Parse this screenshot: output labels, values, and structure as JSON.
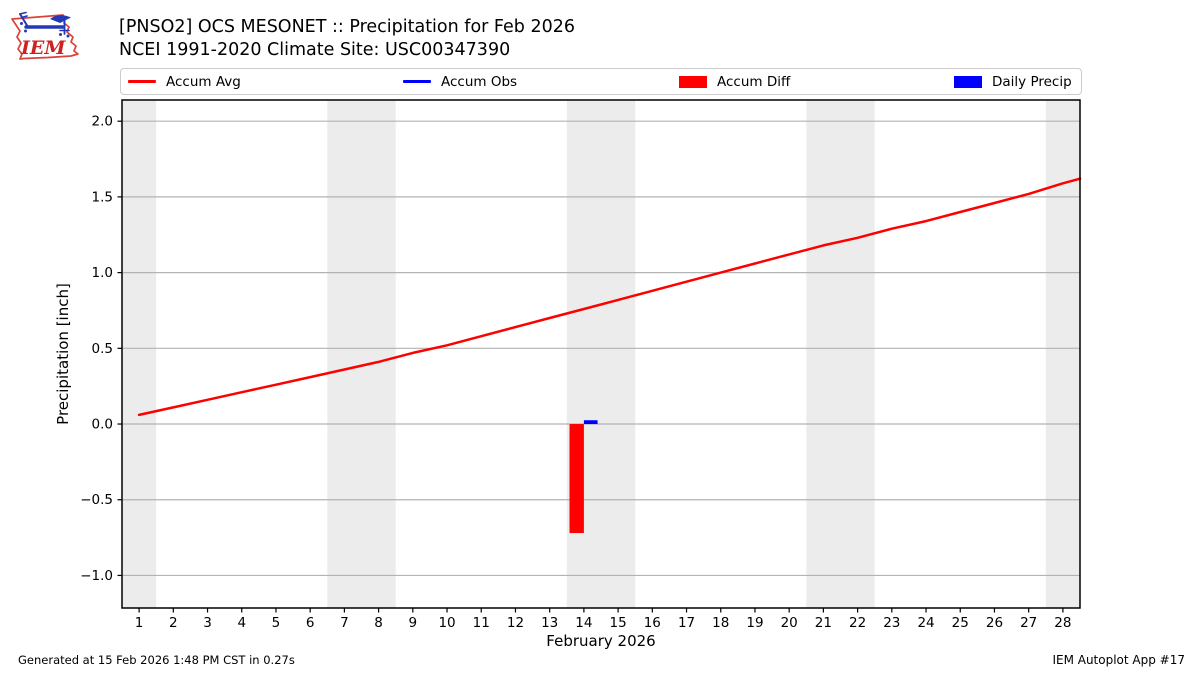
{
  "logo": {
    "text": "IEM"
  },
  "header": {
    "title": "[PNSO2] OCS MESONET :: Precipitation for Feb 2026",
    "subtitle": "NCEI 1991-2020 Climate Site: USC00347390"
  },
  "legend": {
    "items": [
      {
        "label": "Accum Avg",
        "swatch": "line",
        "color": "#ff0000"
      },
      {
        "label": "Accum Obs",
        "swatch": "line",
        "color": "#0000ff"
      },
      {
        "label": "Accum Diff",
        "swatch": "rect",
        "color": "#ff0000"
      },
      {
        "label": "Daily Precip",
        "swatch": "rect",
        "color": "#0000ff"
      }
    ]
  },
  "footer": {
    "left": "Generated at 15 Feb 2026 1:48 PM CST in 0.27s",
    "right": "IEM Autoplot App #17"
  },
  "chart_data": {
    "type": "line",
    "title": "[PNSO2] OCS MESONET :: Precipitation for Feb 2026",
    "subtitle": "NCEI 1991-2020 Climate Site: USC00347390",
    "xlabel": "February 2026",
    "ylabel": "Precipitation [inch]",
    "xlim": [
      0.5,
      28.5
    ],
    "ylim": [
      -1.215,
      2.14
    ],
    "x_ticks": [
      1,
      2,
      3,
      4,
      5,
      6,
      7,
      8,
      9,
      10,
      11,
      12,
      13,
      14,
      15,
      16,
      17,
      18,
      19,
      20,
      21,
      22,
      23,
      24,
      25,
      26,
      27,
      28
    ],
    "y_ticks": [
      -1.0,
      -0.5,
      0.0,
      0.5,
      1.0,
      1.5,
      2.0
    ],
    "y_tick_labels": [
      "−1.0",
      "−0.5",
      "0.0",
      "0.5",
      "1.0",
      "1.5",
      "2.0"
    ],
    "grid": "horizontal-only",
    "legend_position": "top",
    "band_color": "#ececec",
    "grid_color": "#b3b3b3",
    "weekend_bands": [
      [
        0.5,
        1.5
      ],
      [
        6.5,
        8.5
      ],
      [
        13.5,
        15.5
      ],
      [
        20.5,
        22.5
      ],
      [
        27.5,
        28.5
      ]
    ],
    "series": [
      {
        "name": "Accum Avg",
        "type": "line",
        "color": "#ff0000",
        "x": [
          1,
          2,
          3,
          4,
          5,
          6,
          7,
          8,
          9,
          10,
          11,
          12,
          13,
          14,
          15,
          16,
          17,
          18,
          19,
          20,
          21,
          22,
          23,
          24,
          25,
          26,
          27,
          28,
          28.5
        ],
        "y": [
          0.06,
          0.11,
          0.16,
          0.21,
          0.26,
          0.31,
          0.36,
          0.41,
          0.47,
          0.52,
          0.58,
          0.64,
          0.7,
          0.76,
          0.82,
          0.88,
          0.94,
          1.0,
          1.06,
          1.12,
          1.18,
          1.23,
          1.29,
          1.34,
          1.4,
          1.46,
          1.52,
          1.59,
          1.62
        ]
      },
      {
        "name": "Accum Obs",
        "type": "line",
        "color": "#0000ff",
        "x": [],
        "y": []
      }
    ],
    "bars": [
      {
        "name": "Accum Diff",
        "color": "#ff0000",
        "x_from": 13.58,
        "x_to": 14.0,
        "y_from": 0.0,
        "y_to": -0.72
      },
      {
        "name": "Daily Precip",
        "color": "#0000ff",
        "x_from": 14.0,
        "x_to": 14.4,
        "y_from": 0.0,
        "y_to": 0.025
      }
    ]
  }
}
